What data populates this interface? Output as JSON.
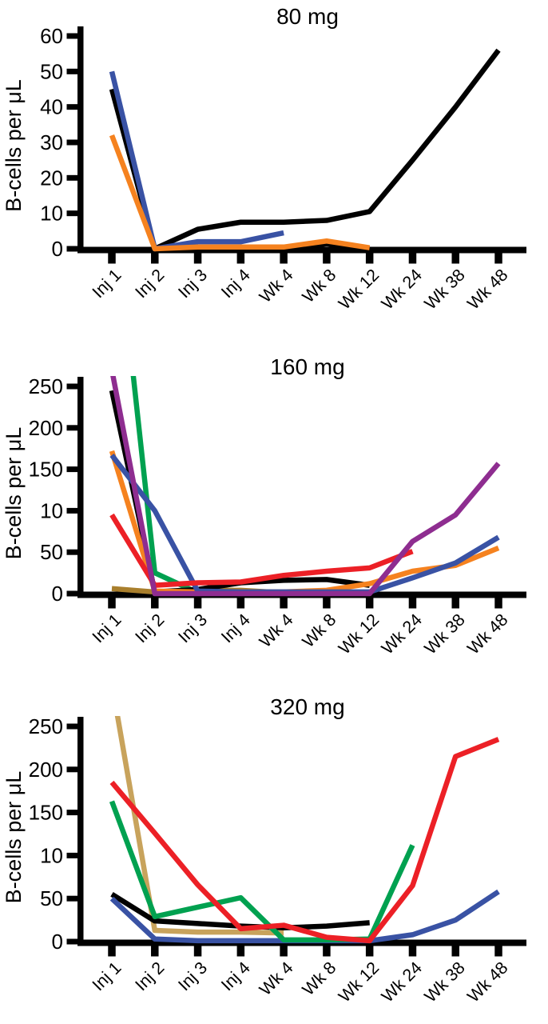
{
  "figure": {
    "y_axis_label": "B-cells per μL",
    "x_categories": [
      "Inj 1",
      "Inj 2",
      "Inj 3",
      "Inj 4",
      "Wk 4",
      "Wk 8",
      "Wk 12",
      "Wk 24",
      "Wk 38",
      "Wk 48"
    ]
  },
  "chart_data": [
    {
      "type": "line",
      "title": "80 mg",
      "ylabel": "B-cells per μL",
      "xlabel": "",
      "ylim": [
        0,
        60
      ],
      "y_tick_labels": [
        "0",
        "10",
        "20",
        "30",
        "40",
        "50",
        "60"
      ],
      "categories": [
        "Inj 1",
        "Inj 2",
        "Inj 3",
        "Inj 4",
        "Wk 4",
        "Wk 8",
        "Wk 12",
        "Wk 24",
        "Wk 38",
        "Wk 48"
      ],
      "grid": false,
      "legend": "none",
      "series": [
        {
          "name": "patient-black-short",
          "color": "#010101",
          "values": [
            null,
            null,
            null,
            0,
            0,
            1.4,
            0,
            null,
            null,
            null
          ]
        },
        {
          "name": "patient-black",
          "color": "#010101",
          "values": [
            45,
            0,
            5.5,
            7.5,
            7.5,
            8,
            10.5,
            25,
            40,
            56
          ]
        },
        {
          "name": "patient-blue",
          "color": "#3952A4",
          "values": [
            50,
            0,
            2,
            2,
            4.5,
            null,
            null,
            null,
            null,
            null
          ]
        },
        {
          "name": "patient-orange",
          "color": "#F5821F",
          "values": [
            32,
            0,
            0.5,
            0.5,
            0.5,
            2.2,
            0.3,
            null,
            null,
            null
          ]
        }
      ]
    },
    {
      "type": "line",
      "title": "160 mg",
      "ylabel": "B-cells per μL",
      "xlabel": "",
      "ylim": [
        0,
        250
      ],
      "y_tick_labels": [
        "0",
        "50",
        "10",
        "150",
        "200",
        "250"
      ],
      "categories": [
        "Inj 1",
        "Inj 2",
        "Inj 3",
        "Inj 4",
        "Wk 4",
        "Wk 8",
        "Wk 12",
        "Wk 24",
        "Wk 38",
        "Wk 48"
      ],
      "grid": false,
      "legend": "none",
      "series": [
        {
          "name": "patient-gold",
          "color": "#A97F2D",
          "values": [
            6,
            2,
            4,
            4,
            1,
            null,
            null,
            null,
            null,
            null
          ]
        },
        {
          "name": "patient-green",
          "color": "#00A150",
          "values": [
            500,
            25,
            1,
            null,
            null,
            null,
            null,
            null,
            null,
            null
          ]
        },
        {
          "name": "patient-black",
          "color": "#010101",
          "values": [
            245,
            2,
            5,
            13,
            16,
            17,
            10,
            null,
            null,
            null
          ]
        },
        {
          "name": "patient-orange",
          "color": "#F5821F",
          "values": [
            172,
            3,
            2,
            2,
            2,
            4,
            12,
            27,
            34,
            55
          ]
        },
        {
          "name": "patient-blue",
          "color": "#3952A4",
          "values": [
            167,
            100,
            3,
            2,
            2,
            2,
            2,
            19,
            37,
            68
          ]
        },
        {
          "name": "patient-red",
          "color": "#EC2026",
          "values": [
            95,
            10,
            13,
            14,
            22,
            27,
            31,
            51,
            null,
            null
          ]
        },
        {
          "name": "patient-purple",
          "color": "#8E2D90",
          "values": [
            270,
            0,
            0,
            0,
            0,
            0,
            0,
            63,
            95,
            157
          ]
        }
      ]
    },
    {
      "type": "line",
      "title": "320 mg",
      "ylabel": "B-cells per μL",
      "xlabel": "",
      "ylim": [
        0,
        250
      ],
      "y_tick_labels": [
        "0",
        "50",
        "10",
        "150",
        "200",
        "250"
      ],
      "categories": [
        "Inj 1",
        "Inj 2",
        "Inj 3",
        "Inj 4",
        "Wk 4",
        "Wk 8",
        "Wk 12",
        "Wk 24",
        "Wk 38",
        "Wk 48"
      ],
      "grid": false,
      "legend": "none",
      "series": [
        {
          "name": "patient-tan",
          "color": "#C8A35C",
          "values": [
            300,
            13,
            11,
            11,
            10,
            null,
            null,
            null,
            null,
            null
          ]
        },
        {
          "name": "patient-black",
          "color": "#010101",
          "values": [
            55,
            24,
            21,
            18,
            16,
            18,
            22,
            null,
            null,
            null
          ]
        },
        {
          "name": "patient-blue",
          "color": "#3952A4",
          "values": [
            50,
            3,
            1,
            1,
            1,
            1,
            1,
            8,
            25,
            58
          ]
        },
        {
          "name": "patient-green",
          "color": "#00A150",
          "values": [
            163,
            29,
            40,
            51,
            2,
            2,
            3,
            112,
            null,
            null
          ]
        },
        {
          "name": "patient-red",
          "color": "#EC2026",
          "values": [
            185,
            126,
            66,
            15,
            19,
            5,
            1,
            65,
            215,
            235
          ]
        }
      ]
    }
  ]
}
